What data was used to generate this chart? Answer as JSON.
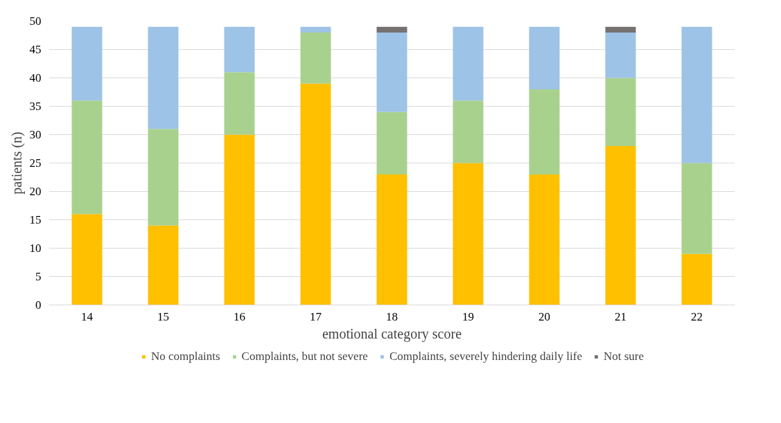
{
  "chart_data": {
    "type": "bar",
    "stacked": true,
    "xlabel": "emotional category score",
    "ylabel": "patients (n)",
    "categories": [
      "14",
      "15",
      "16",
      "17",
      "18",
      "19",
      "20",
      "21",
      "22"
    ],
    "series": [
      {
        "name": "No complaints",
        "color": "#ffc000",
        "values": [
          16,
          14,
          30,
          39,
          23,
          25,
          23,
          28,
          9
        ]
      },
      {
        "name": "Complaints, but not severe",
        "color": "#a9d18e",
        "values": [
          20,
          17,
          11,
          9,
          11,
          11,
          15,
          12,
          16
        ]
      },
      {
        "name": "Complaints, severely hindering daily life",
        "color": "#9dc3e6",
        "values": [
          13,
          18,
          8,
          1,
          14,
          13,
          11,
          8,
          24
        ]
      },
      {
        "name": "Not sure",
        "color": "#767171",
        "values": [
          0,
          0,
          0,
          0,
          1,
          0,
          0,
          1,
          0
        ]
      }
    ],
    "ylim": [
      0,
      50
    ],
    "yticks": [
      0,
      5,
      10,
      15,
      20,
      25,
      30,
      35,
      40,
      45,
      50
    ],
    "grid": "y",
    "legend": "bottom"
  }
}
